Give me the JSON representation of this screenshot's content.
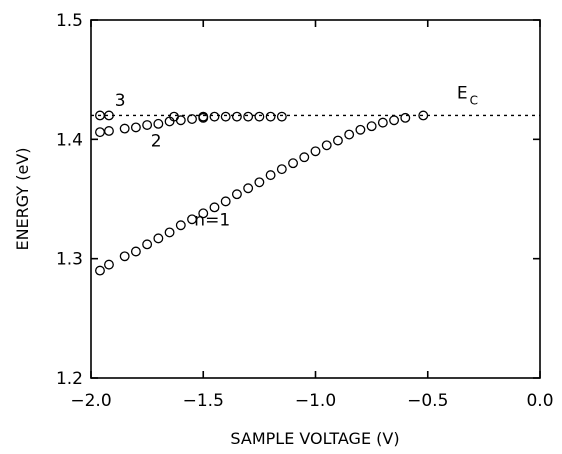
{
  "chart_data": {
    "type": "scatter",
    "title": "",
    "xlabel": "SAMPLE VOLTAGE (V)",
    "ylabel": "ENERGY (eV)",
    "xlim": [
      -2.0,
      0.0
    ],
    "ylim": [
      1.2,
      1.5
    ],
    "x_ticks": [
      -2.0,
      -1.5,
      -1.0,
      -0.5,
      0.0
    ],
    "x_tick_labels": [
      "−2.0",
      "−1.5",
      "−1.0",
      "−0.5",
      "0.0"
    ],
    "y_ticks": [
      1.2,
      1.3,
      1.4,
      1.5
    ],
    "y_tick_labels": [
      "1.2",
      "1.3",
      "1.4",
      "1.5"
    ],
    "grid": false,
    "reference_line": {
      "y": 1.42,
      "style": "dotted",
      "label": "E",
      "label_subscript": "C"
    },
    "annotations": [
      {
        "text": "3",
        "x": -1.87,
        "y": 1.428
      },
      {
        "text": "2",
        "x": -1.71,
        "y": 1.394
      },
      {
        "text": "n=1",
        "x": -1.46,
        "y": 1.328
      }
    ],
    "series": [
      {
        "marker": "open-circle",
        "x": [
          -1.96,
          -1.92,
          -1.63,
          -1.5,
          -1.45,
          -1.4,
          -1.35,
          -1.3,
          -1.25,
          -1.2,
          -1.15
        ],
        "y": [
          1.42,
          1.42,
          1.419,
          1.419,
          1.419,
          1.419,
          1.419,
          1.419,
          1.419,
          1.419,
          1.419
        ]
      },
      {
        "marker": "open-circle",
        "x": [
          -1.96,
          -1.92,
          -1.85,
          -1.8,
          -1.75,
          -1.7,
          -1.65,
          -1.6,
          -1.55,
          -1.5
        ],
        "y": [
          1.406,
          1.407,
          1.409,
          1.41,
          1.412,
          1.413,
          1.415,
          1.416,
          1.417,
          1.418
        ]
      },
      {
        "marker": "open-circle",
        "x": [
          -1.96,
          -1.92,
          -1.85,
          -1.8,
          -1.75,
          -1.7,
          -1.65,
          -1.6,
          -1.55,
          -1.5,
          -1.45,
          -1.4,
          -1.35,
          -1.3,
          -1.25,
          -1.2,
          -1.15,
          -1.1,
          -1.05,
          -1.0,
          -0.95,
          -0.9,
          -0.85,
          -0.8,
          -0.75,
          -0.7,
          -0.65,
          -0.6,
          -0.52
        ],
        "y": [
          1.29,
          1.295,
          1.302,
          1.306,
          1.312,
          1.317,
          1.322,
          1.328,
          1.333,
          1.338,
          1.343,
          1.348,
          1.354,
          1.359,
          1.364,
          1.37,
          1.375,
          1.38,
          1.385,
          1.39,
          1.395,
          1.399,
          1.404,
          1.408,
          1.411,
          1.414,
          1.416,
          1.418,
          1.42
        ]
      }
    ]
  }
}
